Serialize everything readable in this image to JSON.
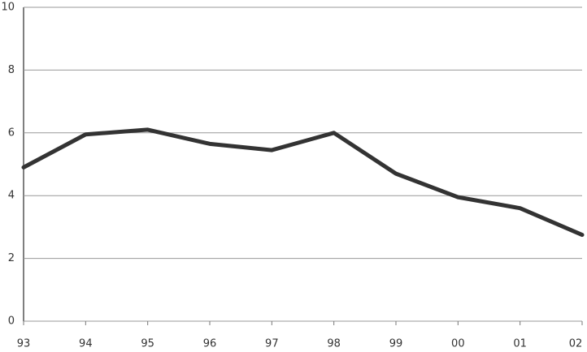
{
  "chart_data": {
    "type": "line",
    "categories": [
      "93",
      "94",
      "95",
      "96",
      "97",
      "98",
      "99",
      "00",
      "01",
      "02"
    ],
    "series": [
      {
        "color": "#333333",
        "values": [
          4.9,
          5.95,
          6.1,
          5.65,
          5.45,
          6.0,
          4.7,
          3.95,
          3.6,
          2.75
        ]
      }
    ],
    "ylim": [
      0,
      10
    ],
    "yticks": [
      0,
      2,
      4,
      6,
      8,
      10
    ],
    "grid": true
  }
}
